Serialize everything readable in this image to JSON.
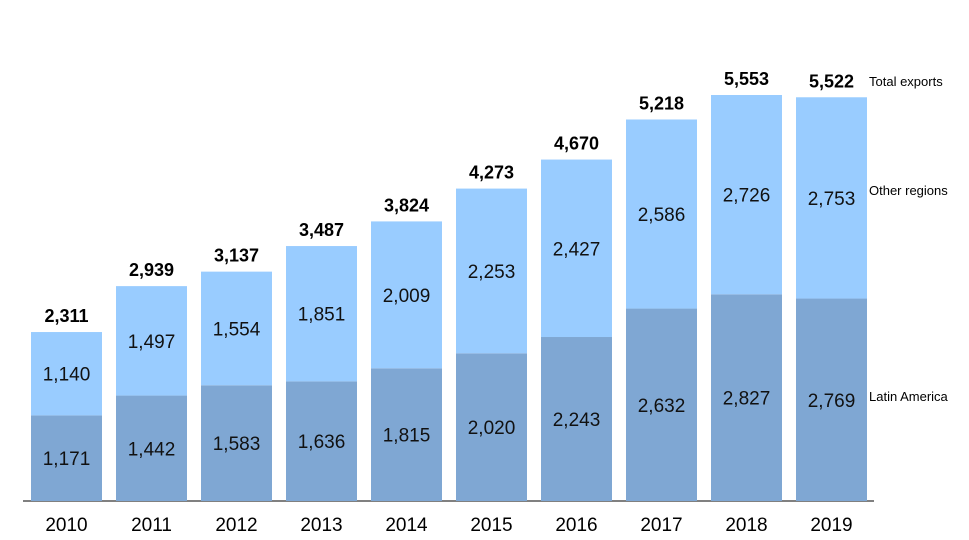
{
  "chart_data": {
    "type": "bar",
    "stacked": true,
    "categories": [
      "2010",
      "2011",
      "2012",
      "2013",
      "2014",
      "2015",
      "2016",
      "2017",
      "2018",
      "2019"
    ],
    "series": [
      {
        "name": "Latin America",
        "values": [
          1171,
          1442,
          1583,
          1636,
          1815,
          2020,
          2243,
          2632,
          2827,
          2769
        ],
        "labels": [
          "1,171",
          "1,442",
          "1,583",
          "1,636",
          "1,815",
          "2,020",
          "2,243",
          "2,632",
          "2,827",
          "2,769"
        ],
        "color": "#7fa7d3"
      },
      {
        "name": "Other regions",
        "values": [
          1140,
          1497,
          1554,
          1851,
          2009,
          2253,
          2427,
          2586,
          2726,
          2753
        ],
        "labels": [
          "1,140",
          "1,497",
          "1,554",
          "1,851",
          "2,009",
          "2,253",
          "2,427",
          "2,586",
          "2,726",
          "2,753"
        ],
        "color": "#99ccff"
      }
    ],
    "totals": {
      "name": "Total exports",
      "values": [
        2311,
        2939,
        3137,
        3487,
        3824,
        4273,
        4670,
        5218,
        5553,
        5522
      ],
      "labels": [
        "2,311",
        "2,939",
        "3,137",
        "3,487",
        "3,824",
        "4,273",
        "4,670",
        "5,218",
        "5,553",
        "5,522"
      ]
    },
    "legend_position": "right",
    "grid": false
  }
}
